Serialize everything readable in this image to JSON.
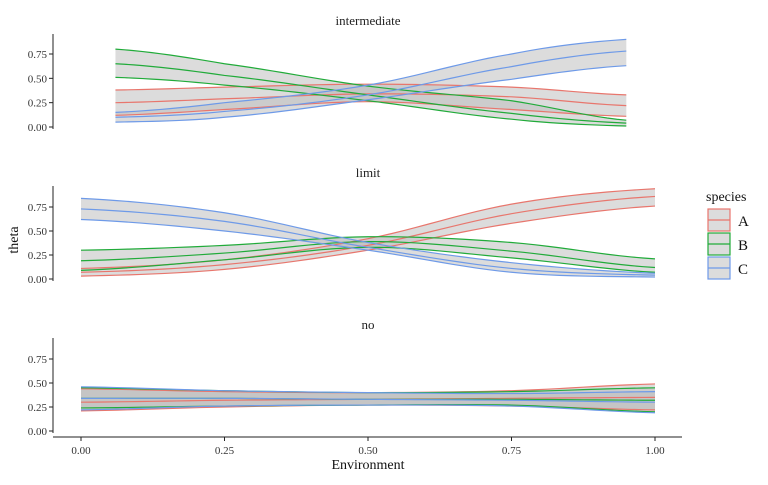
{
  "chart_data": {
    "type": "line",
    "description": "Faceted ribbon line chart of theta vs Environment",
    "xlabel": "Environment",
    "ylabel": "theta",
    "xlim": [
      0,
      1
    ],
    "ylim": [
      0,
      1
    ],
    "x_ticks": [
      0,
      0.25,
      0.5,
      0.75,
      1
    ],
    "x_tick_labels": [
      "0.00",
      "0.25",
      "0.50",
      "0.75",
      "1.00"
    ],
    "y_ticks": [
      0,
      0.25,
      0.5,
      0.75
    ],
    "y_tick_labels": [
      "0.00",
      "0.25",
      "0.50",
      "0.75"
    ],
    "grid": false,
    "legend": {
      "title": "species",
      "placement": "right",
      "entries": [
        "A",
        "B",
        "C"
      ]
    },
    "colors": {
      "A": "#E8766D",
      "B": "#21AB3A",
      "C": "#6E9AE8",
      "ribbon": "#C0C0C0"
    },
    "facets": [
      {
        "name": "intermediate",
        "x_range": [
          0.06,
          0.95
        ],
        "series": [
          {
            "name": "A",
            "x": [
              0.06,
              0.25,
              0.5,
              0.75,
              0.95
            ],
            "mid": [
              0.25,
              0.29,
              0.34,
              0.31,
              0.22
            ],
            "lower": [
              0.12,
              0.18,
              0.26,
              0.18,
              0.11
            ],
            "upper": [
              0.38,
              0.41,
              0.44,
              0.41,
              0.33
            ]
          },
          {
            "name": "B",
            "x": [
              0.06,
              0.25,
              0.5,
              0.75,
              0.95
            ],
            "mid": [
              0.65,
              0.53,
              0.33,
              0.14,
              0.04
            ],
            "lower": [
              0.51,
              0.43,
              0.27,
              0.08,
              0.01
            ],
            "upper": [
              0.8,
              0.65,
              0.42,
              0.27,
              0.07
            ]
          },
          {
            "name": "C",
            "x": [
              0.06,
              0.25,
              0.5,
              0.75,
              0.95
            ],
            "mid": [
              0.1,
              0.16,
              0.33,
              0.62,
              0.78
            ],
            "lower": [
              0.05,
              0.1,
              0.28,
              0.49,
              0.63
            ],
            "upper": [
              0.15,
              0.25,
              0.43,
              0.75,
              0.9
            ]
          }
        ]
      },
      {
        "name": "limit",
        "x_range": [
          0,
          1
        ],
        "series": [
          {
            "name": "A",
            "x": [
              0,
              0.25,
              0.5,
              0.75,
              1
            ],
            "mid": [
              0.07,
              0.15,
              0.35,
              0.68,
              0.86
            ],
            "lower": [
              0.03,
              0.1,
              0.3,
              0.58,
              0.76
            ],
            "upper": [
              0.11,
              0.2,
              0.42,
              0.78,
              0.94
            ]
          },
          {
            "name": "B",
            "x": [
              0,
              0.25,
              0.5,
              0.75,
              1
            ],
            "mid": [
              0.19,
              0.27,
              0.39,
              0.29,
              0.12
            ],
            "lower": [
              0.09,
              0.2,
              0.33,
              0.22,
              0.07
            ],
            "upper": [
              0.3,
              0.35,
              0.44,
              0.38,
              0.21
            ]
          },
          {
            "name": "C",
            "x": [
              0,
              0.25,
              0.5,
              0.75,
              1
            ],
            "mid": [
              0.73,
              0.6,
              0.33,
              0.11,
              0.04
            ],
            "lower": [
              0.62,
              0.5,
              0.3,
              0.07,
              0.02
            ],
            "upper": [
              0.84,
              0.69,
              0.38,
              0.17,
              0.06
            ]
          }
        ]
      },
      {
        "name": "no",
        "x_range": [
          0,
          1
        ],
        "series": [
          {
            "name": "A",
            "x": [
              0,
              0.25,
              0.5,
              0.75,
              1
            ],
            "mid": [
              0.3,
              0.32,
              0.33,
              0.34,
              0.35
            ],
            "lower": [
              0.21,
              0.25,
              0.27,
              0.26,
              0.22
            ],
            "upper": [
              0.44,
              0.41,
              0.4,
              0.42,
              0.49
            ]
          },
          {
            "name": "B",
            "x": [
              0,
              0.25,
              0.5,
              0.75,
              1
            ],
            "mid": [
              0.34,
              0.34,
              0.33,
              0.33,
              0.32
            ],
            "lower": [
              0.24,
              0.26,
              0.27,
              0.27,
              0.2
            ],
            "upper": [
              0.45,
              0.42,
              0.4,
              0.41,
              0.45
            ]
          },
          {
            "name": "C",
            "x": [
              0,
              0.25,
              0.5,
              0.75,
              1
            ],
            "mid": [
              0.34,
              0.34,
              0.33,
              0.32,
              0.3
            ],
            "lower": [
              0.22,
              0.26,
              0.27,
              0.26,
              0.19
            ],
            "upper": [
              0.46,
              0.42,
              0.4,
              0.39,
              0.41
            ]
          }
        ]
      }
    ]
  }
}
